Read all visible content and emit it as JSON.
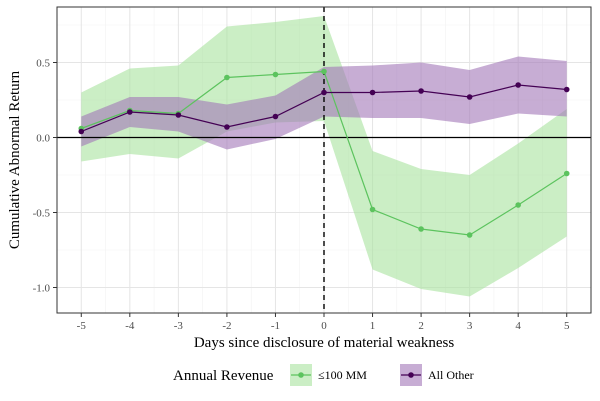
{
  "chart_data": {
    "type": "line",
    "title": "",
    "xlabel": "Days since disclosure of material weakness",
    "ylabel": "Cumulative Abnormal Return",
    "x": [
      -5,
      -4,
      -3,
      -2,
      -1,
      0,
      1,
      2,
      3,
      4,
      5
    ],
    "xlim": [
      -5.5,
      5.5
    ],
    "ylim": [
      -1.17,
      0.87
    ],
    "xticks": [
      -5,
      -4,
      -3,
      -2,
      -1,
      0,
      1,
      2,
      3,
      4,
      5
    ],
    "yticks": [
      -1.0,
      -0.5,
      0.0,
      0.5
    ],
    "ytick_labels": [
      "-1.0",
      "-0.5",
      "0.0",
      "0.5"
    ],
    "grid": true,
    "reference_lines": {
      "horizontal_y": 0,
      "vertical_dashed_x": 0
    },
    "legend": {
      "title": "Annual Revenue",
      "position": "bottom"
    },
    "series": [
      {
        "name": "≤100 MM",
        "color": "#5cc35e",
        "band_color": "#a9e39f",
        "values": [
          0.06,
          0.18,
          0.16,
          0.4,
          0.42,
          0.44,
          -0.48,
          -0.61,
          -0.65,
          -0.45,
          -0.24
        ],
        "lower": [
          -0.16,
          -0.11,
          -0.14,
          0.04,
          0.1,
          0.11,
          -0.88,
          -1.01,
          -1.06,
          -0.87,
          -0.66
        ],
        "upper": [
          0.3,
          0.46,
          0.48,
          0.74,
          0.77,
          0.81,
          -0.09,
          -0.21,
          -0.25,
          -0.04,
          0.19
        ]
      },
      {
        "name": "All Other",
        "color": "#440154",
        "band_color": "#a177b8",
        "values": [
          0.04,
          0.17,
          0.15,
          0.07,
          0.14,
          0.3,
          0.3,
          0.31,
          0.27,
          0.35,
          0.32
        ],
        "lower": [
          -0.06,
          0.07,
          0.04,
          -0.08,
          -0.01,
          0.14,
          0.13,
          0.13,
          0.09,
          0.16,
          0.14
        ],
        "upper": [
          0.14,
          0.27,
          0.27,
          0.22,
          0.28,
          0.47,
          0.48,
          0.5,
          0.45,
          0.54,
          0.51
        ]
      }
    ]
  }
}
